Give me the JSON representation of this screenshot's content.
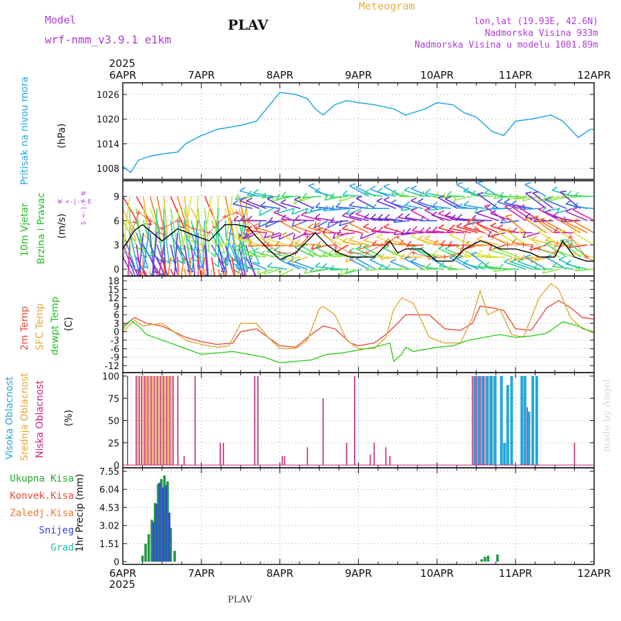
{
  "header": {
    "model_label": "Model",
    "model_name": "wrf-nmm_v3.9.1 e1km",
    "station": "PLAV",
    "meteogram_label": "Meteogram",
    "lonlat": "lon,lat (19.93E, 42.6N)",
    "elevation": "Nadmorska Visina 933m",
    "model_elevation": "Nadmorska Visina u modelu 1001.89m",
    "year_top": "2025",
    "year_bottom": "2025",
    "footer_station": "PLAV",
    "credit": "made by Angel"
  },
  "colors": {
    "pressure": "#22a7dd",
    "temp2m": "#e84a3c",
    "sfc_temp": "#e0a83a",
    "dewpoint": "#33cc22",
    "high_cloud": "#22a7dd",
    "mid_cloud": "#e0a83a",
    "low_cloud": "#cc2277",
    "total_precip": "#229944",
    "snow": "#3355cc"
  },
  "chart_data": [
    {
      "type": "line",
      "id": "pressure",
      "labels": [
        "Pritisak na nivou mora",
        "(hPa)"
      ],
      "x_ticks": [
        "6APR",
        "7APR",
        "8APR",
        "9APR",
        "10APR",
        "11APR",
        "12APR"
      ],
      "yticks": [
        1008,
        1014,
        1020,
        1026
      ],
      "ylim": [
        1006,
        1028
      ],
      "grid": true,
      "series": [
        {
          "x": [
            0,
            0.1,
            0.2,
            0.35,
            0.5,
            0.7,
            0.8,
            1.0,
            1.2,
            1.5,
            1.7,
            1.85,
            2.0,
            2.2,
            2.35,
            2.45,
            2.55,
            2.7,
            2.85,
            3.0,
            3.2,
            3.45,
            3.6,
            3.85,
            4.0,
            4.2,
            4.35,
            4.5,
            4.7,
            4.85,
            5.0,
            5.2,
            5.45,
            5.6,
            5.8,
            5.95,
            6.0
          ],
          "values": [
            1008.5,
            1007,
            1010,
            1011,
            1011.5,
            1012,
            1014,
            1016,
            1017.5,
            1018.5,
            1019.5,
            1023,
            1026.5,
            1026,
            1025,
            1022.5,
            1021,
            1023.5,
            1024.5,
            1024,
            1023.5,
            1022.5,
            1021,
            1022.5,
            1024,
            1023.5,
            1021.5,
            1020.5,
            1017,
            1016,
            1019.5,
            1020,
            1021,
            1019.5,
            1015.5,
            1017.5,
            1017.5
          ]
        }
      ]
    },
    {
      "type": "line",
      "id": "wind",
      "labels": [
        "10m Vjetar",
        "Brzina i Pravac",
        "(m/s)"
      ],
      "direction_legend": "W <-|-> E",
      "direction_legend_vertical": "S <-|-> N",
      "yticks": [
        0,
        3,
        6,
        9
      ],
      "ylim": [
        -0.5,
        10.5
      ],
      "grid": true,
      "series": [
        {
          "name": "speed",
          "x": [
            0,
            0.15,
            0.25,
            0.5,
            0.7,
            0.9,
            1.1,
            1.3,
            1.45,
            1.6,
            1.7,
            1.85,
            2.0,
            2.2,
            2.35,
            2.45,
            2.6,
            2.75,
            2.9,
            3.0,
            3.2,
            3.4,
            3.5,
            3.6,
            3.8,
            4.0,
            4.2,
            4.35,
            4.45,
            4.55,
            4.65,
            4.8,
            5.0,
            5.2,
            5.3,
            5.5,
            5.6,
            5.75,
            5.9,
            6.0
          ],
          "values": [
            2.5,
            4.8,
            5.5,
            3.5,
            5,
            4.2,
            3.5,
            5.5,
            5.5,
            5.2,
            4,
            2.5,
            1.2,
            2,
            3.5,
            4.5,
            3,
            2,
            1.5,
            1.5,
            1.5,
            3.5,
            2,
            2.5,
            2.5,
            1,
            1,
            2.5,
            3,
            3.5,
            3.2,
            2.5,
            2.5,
            2,
            1.5,
            1.5,
            3.5,
            1.5,
            1,
            1
          ]
        },
        {
          "name": "gust",
          "x": [
            0,
            0.2,
            0.35,
            0.5,
            0.7,
            0.9,
            1.1,
            1.3,
            1.45,
            1.6,
            1.7,
            1.85,
            2.0,
            2.2,
            2.35,
            2.5,
            2.7,
            2.9,
            3.1,
            3.3,
            3.5,
            3.7,
            3.9,
            4.1,
            4.3,
            4.4,
            4.5,
            4.7,
            4.9,
            5.1,
            5.3,
            5.5,
            5.7,
            5.9,
            6.0
          ],
          "values": [
            1.5,
            7,
            6,
            5,
            6,
            5,
            4.5,
            6.5,
            7,
            6,
            5,
            3,
            2,
            2,
            4,
            5,
            3,
            2,
            2,
            3,
            4,
            2,
            1.5,
            1.5,
            2,
            6,
            5,
            4,
            3,
            3,
            2.5,
            2,
            4,
            1.5,
            1
          ]
        }
      ]
    },
    {
      "type": "line",
      "id": "temperature",
      "labels": [
        "2m Temp",
        "SFC Temp",
        "dewpt Temp",
        "(C)"
      ],
      "yticks": [
        -12,
        -9,
        -6,
        -3,
        0,
        3,
        6,
        9,
        12,
        15,
        18
      ],
      "ylim": [
        -13.5,
        18.5
      ],
      "grid": true,
      "series": [
        {
          "name": "2m Temp",
          "x": [
            0,
            0.15,
            0.3,
            0.5,
            0.8,
            1.0,
            1.2,
            1.4,
            1.5,
            1.7,
            1.9,
            2.0,
            2.2,
            2.4,
            2.55,
            2.7,
            2.9,
            3.0,
            3.2,
            3.35,
            3.5,
            3.6,
            3.9,
            4.1,
            4.3,
            4.45,
            4.55,
            4.7,
            4.85,
            5.0,
            5.2,
            5.4,
            5.55,
            5.7,
            5.85,
            6.0
          ],
          "values": [
            2,
            5,
            3,
            2,
            -2,
            -3.5,
            -4.5,
            -4,
            0,
            1,
            -3,
            -5,
            -5.5,
            -1,
            2,
            1,
            -4,
            -5,
            -4,
            -1,
            3,
            6,
            6,
            1,
            0.5,
            3,
            9,
            8.5,
            7.5,
            1,
            0.5,
            8.5,
            11,
            8.5,
            5,
            4.5
          ]
        },
        {
          "name": "SFC Temp",
          "x": [
            0,
            0.15,
            0.25,
            0.5,
            0.8,
            1.0,
            1.2,
            1.35,
            1.5,
            1.7,
            1.85,
            2.0,
            2.2,
            2.35,
            2.5,
            2.55,
            2.7,
            2.85,
            3.0,
            3.2,
            3.35,
            3.45,
            3.55,
            3.7,
            3.9,
            4.1,
            4.3,
            4.45,
            4.55,
            4.65,
            4.8,
            4.95,
            5.1,
            5.3,
            5.45,
            5.55,
            5.7,
            5.85,
            6.0
          ],
          "values": [
            0,
            4,
            2,
            3,
            -3,
            -4.5,
            -5.5,
            -5,
            3,
            3,
            -2,
            -6,
            -6,
            -3,
            8,
            9,
            6,
            -3,
            -6,
            -6,
            -2,
            8,
            12,
            10,
            -2,
            -4,
            -4,
            5,
            14.5,
            6,
            8,
            -1,
            -2,
            12,
            17,
            15,
            5,
            1,
            0
          ]
        },
        {
          "name": "dewpt Temp",
          "x": [
            0,
            0.1,
            0.2,
            0.3,
            0.4,
            0.6,
            0.8,
            1.0,
            1.2,
            1.4,
            1.6,
            1.8,
            2.0,
            2.2,
            2.4,
            2.6,
            2.8,
            3.0,
            3.2,
            3.4,
            3.45,
            3.55,
            3.6,
            3.7,
            3.8,
            3.9,
            4.0,
            4.2,
            4.4,
            4.6,
            4.8,
            5.0,
            5.2,
            5.4,
            5.6,
            5.8,
            6.0
          ],
          "values": [
            1,
            4,
            2,
            -1,
            -2,
            -4,
            -6,
            -8,
            -7.5,
            -7,
            -8,
            -9,
            -11,
            -10.5,
            -10,
            -8,
            -7.5,
            -6.5,
            -5.5,
            -4,
            -10.5,
            -8,
            -5.5,
            -7,
            -6.5,
            -6,
            -5.5,
            -5,
            -3,
            -2,
            -1,
            -2,
            -1.5,
            -0.5,
            3.5,
            2,
            -0.5
          ]
        }
      ]
    },
    {
      "type": "bar",
      "id": "cloud",
      "labels": [
        "Visoka Oblacnost",
        "Srednja Oblacnost",
        "Niska Oblacnost",
        "(%)"
      ],
      "yticks": [
        0,
        25,
        50,
        75,
        100
      ],
      "ylim": [
        0,
        100
      ],
      "grid": true,
      "series": [
        {
          "name": "Niska Oblacnost",
          "x": [
            0.06,
            0.17,
            0.21,
            0.24,
            0.28,
            0.32,
            0.36,
            0.4,
            0.44,
            0.48,
            0.52,
            0.56,
            0.6,
            0.64,
            0.7,
            0.78,
            0.92,
            1.24,
            1.28,
            1.68,
            1.72,
            2.03,
            2.06,
            2.35,
            2.55,
            2.85,
            2.95,
            3.15,
            3.2,
            3.35,
            3.4,
            4.45,
            4.5,
            4.55,
            4.6,
            4.65,
            4.7,
            4.75,
            5.15,
            5.75
          ],
          "values": [
            100,
            100,
            100,
            100,
            100,
            100,
            100,
            100,
            100,
            100,
            100,
            100,
            100,
            100,
            100,
            10,
            100,
            25,
            25,
            100,
            100,
            10,
            10,
            20,
            75,
            25,
            100,
            12,
            25,
            20,
            10,
            100,
            100,
            100,
            100,
            100,
            100,
            100,
            65,
            25
          ]
        },
        {
          "name": "Srednja Oblacnost",
          "x": [
            0.19,
            0.26,
            0.3,
            0.34,
            0.38,
            0.42,
            0.46,
            0.5,
            0.54,
            0.58,
            0.62,
            4.47,
            4.52,
            4.57,
            4.62,
            4.67,
            4.72
          ],
          "values": [
            100,
            100,
            100,
            100,
            100,
            100,
            100,
            100,
            100,
            100,
            100,
            100,
            100,
            100,
            100,
            100,
            100
          ]
        },
        {
          "name": "Visoka Oblacnost",
          "x": [
            4.48,
            4.53,
            4.58,
            4.64,
            4.69,
            4.74,
            4.82,
            4.86,
            4.9,
            4.95,
            5.08,
            5.12,
            5.17,
            5.22,
            5.27
          ],
          "values": [
            100,
            100,
            100,
            100,
            100,
            100,
            100,
            25,
            90,
            100,
            100,
            100,
            60,
            100,
            100
          ]
        }
      ]
    },
    {
      "type": "bar",
      "id": "precip",
      "labels": [
        "1hr Precip (mm)"
      ],
      "legend": [
        "Ukupna Kisa",
        "Konvek.Kisa",
        "Zaledj.Kisa",
        "Snijeg",
        "Grad"
      ],
      "yticks": [
        0,
        1.51,
        3.02,
        4.53,
        6.04,
        7.55
      ],
      "ylim": [
        0,
        7.55
      ],
      "grid": true,
      "x_ticks": [
        "6APR",
        "7APR",
        "8APR",
        "9APR",
        "10APR",
        "11APR",
        "12APR"
      ],
      "series": [
        {
          "name": "Ukupna Kisa",
          "x": [
            0.25,
            0.29,
            0.33,
            0.37,
            0.41,
            0.45,
            0.49,
            0.53,
            0.57,
            0.61,
            0.66,
            4.57,
            4.61,
            4.65,
            4.77
          ],
          "values": [
            0.5,
            1.5,
            2.3,
            3.5,
            4.9,
            6.5,
            6.9,
            7.2,
            6.7,
            2.8,
            0.9,
            0.2,
            0.4,
            0.5,
            0.6
          ]
        },
        {
          "name": "Snijeg",
          "x": [
            0.39,
            0.43,
            0.47,
            0.51,
            0.55,
            0.59
          ],
          "values": [
            3.3,
            4.8,
            6.6,
            6.2,
            6.4,
            4.1
          ]
        }
      ]
    }
  ]
}
